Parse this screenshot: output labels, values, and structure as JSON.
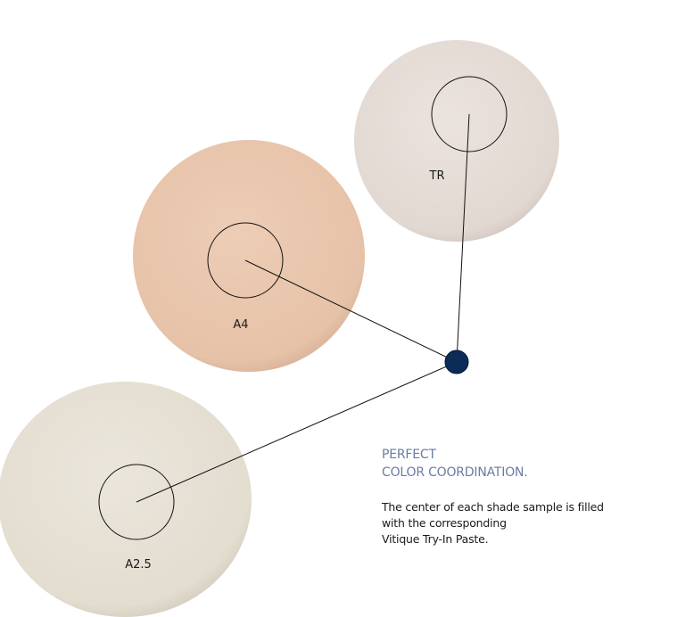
{
  "shades": [
    {
      "label": "TR"
    },
    {
      "label": "A4"
    },
    {
      "label": "A2.5"
    }
  ],
  "heading": {
    "lines": [
      "PERFECT",
      "COLOR COORDINATION."
    ]
  },
  "body": {
    "lines": [
      "The center of each shade sample is filled",
      "with the corresponding",
      "Vitique Try-In Paste."
    ]
  }
}
